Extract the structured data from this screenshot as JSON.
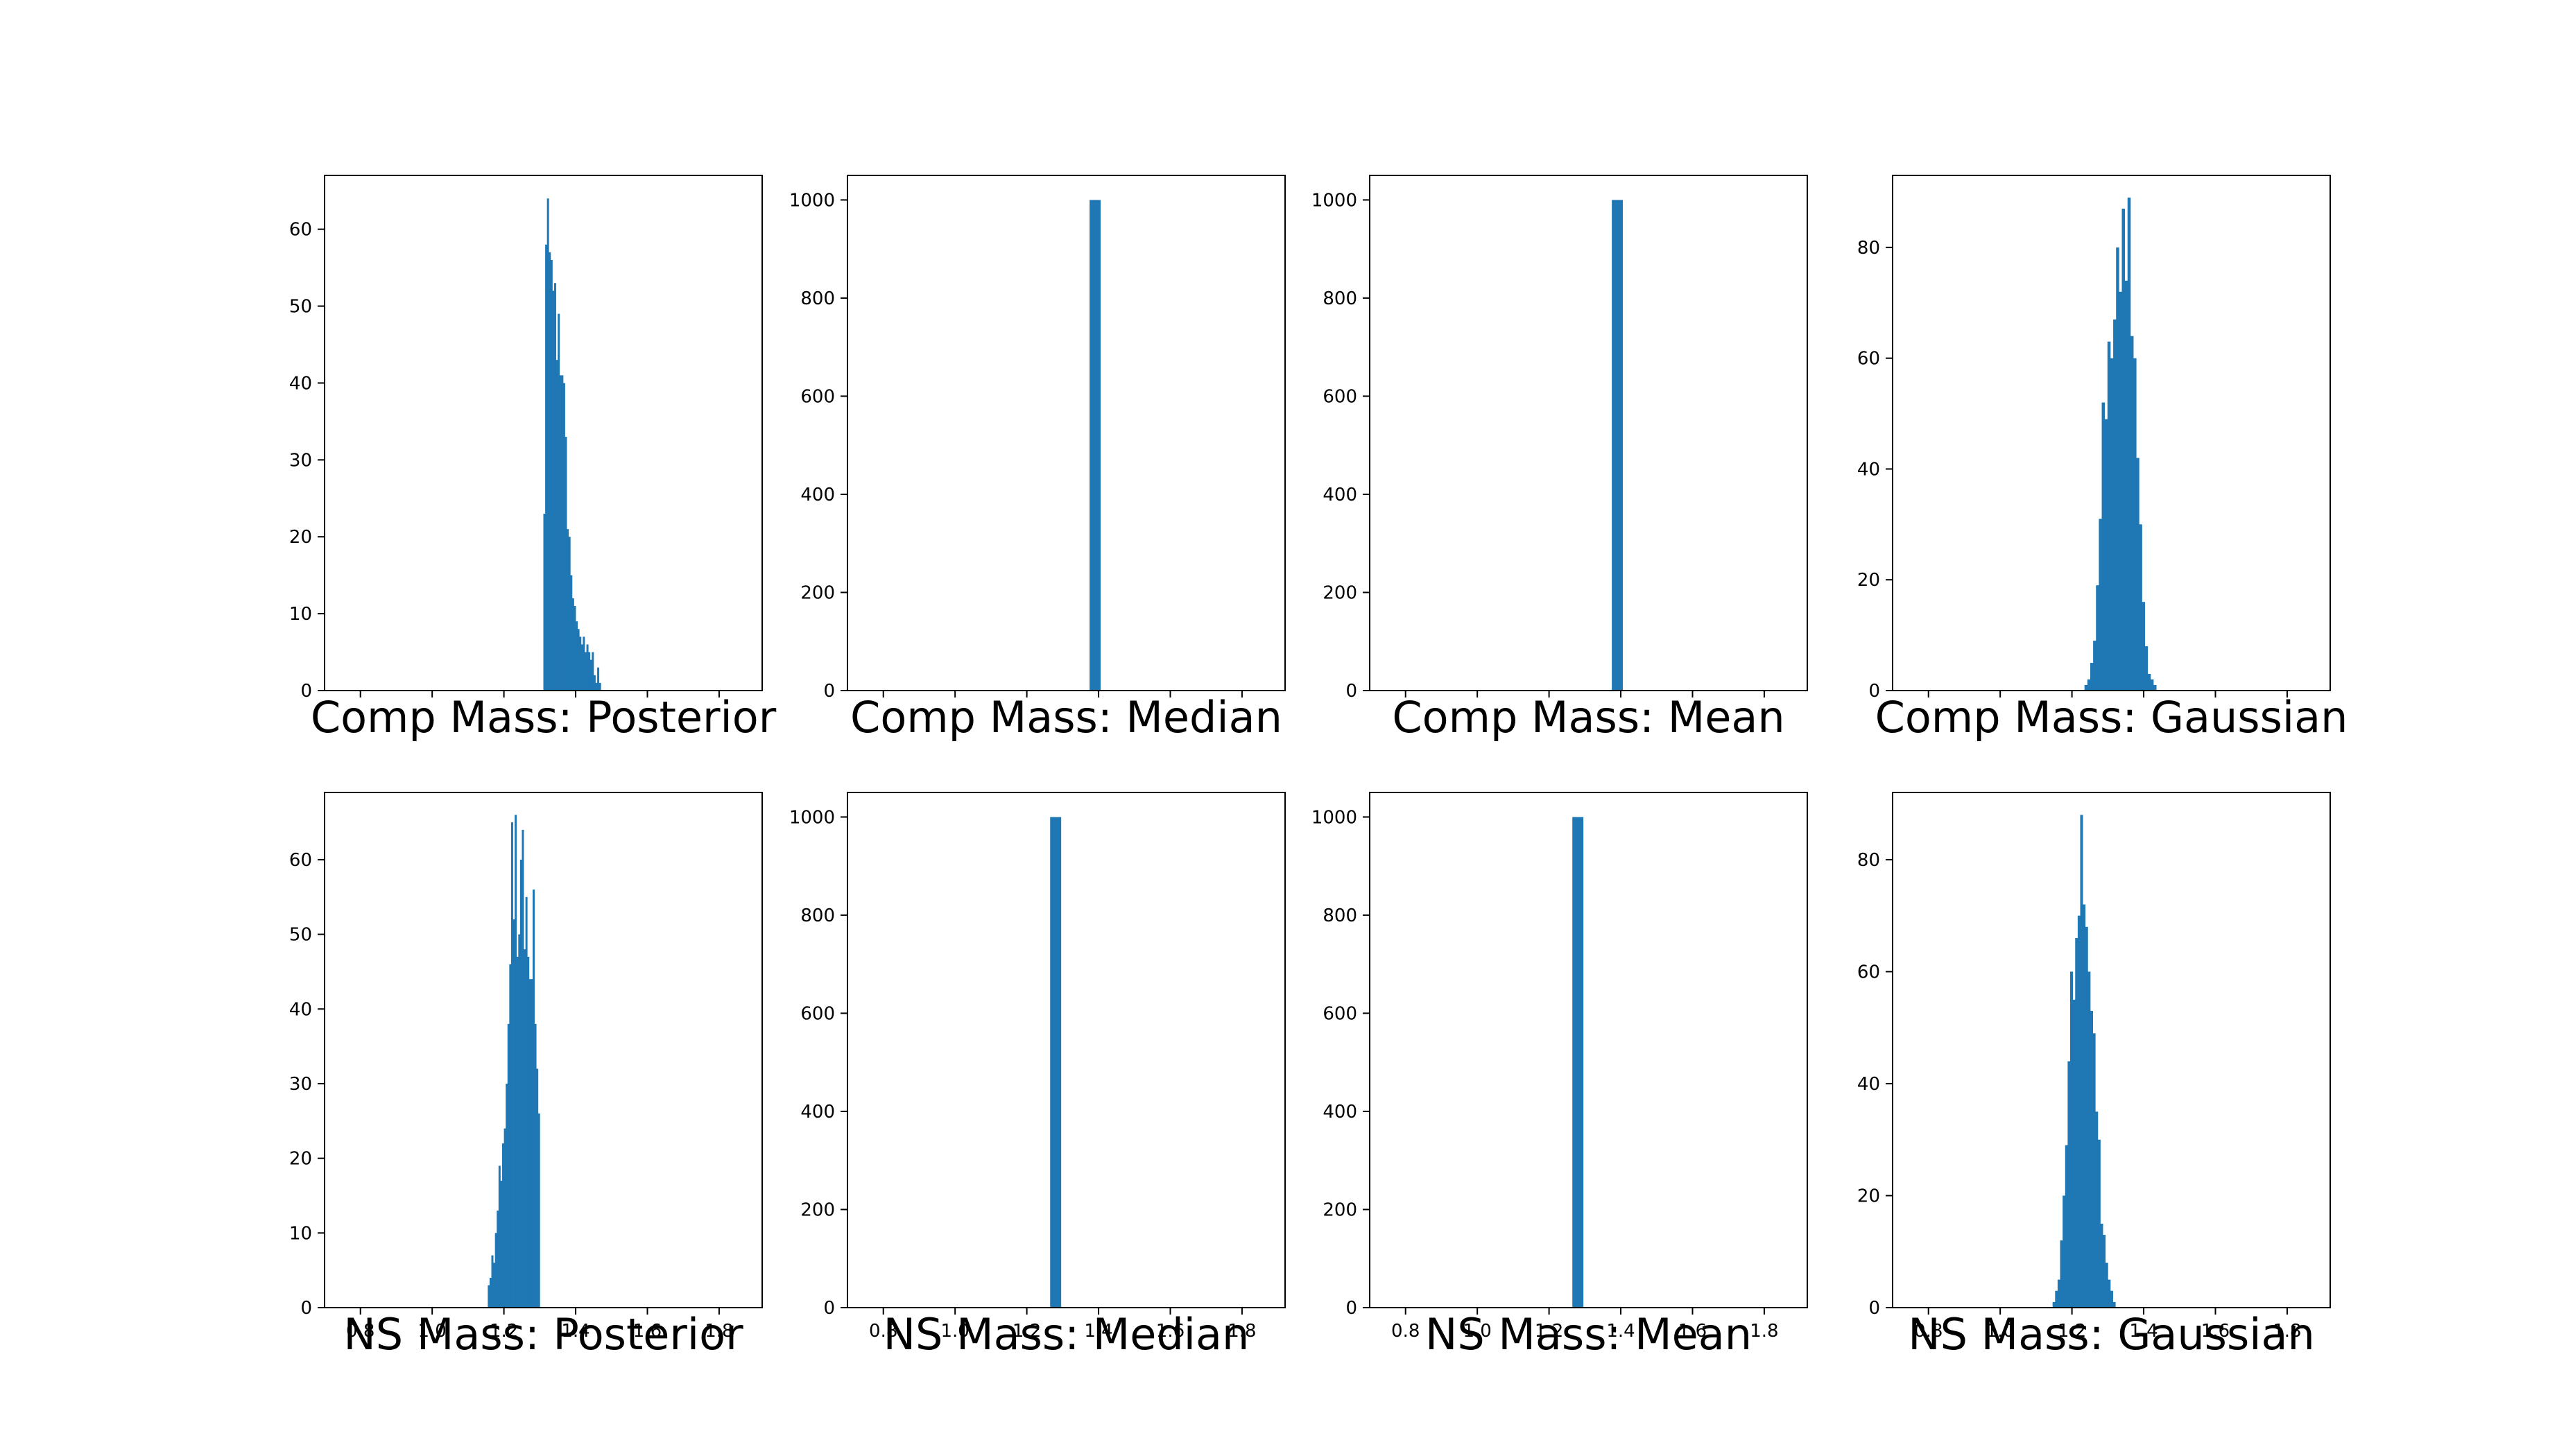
{
  "bar_color": "#1f77b4",
  "chart_data": [
    {
      "type": "bar",
      "title": "Comp Mass: Posterior",
      "xlim": [
        0.7,
        1.92
      ],
      "ylim": [
        0,
        67
      ],
      "yticks": [
        0,
        10,
        20,
        30,
        40,
        50,
        60
      ],
      "xticks": [],
      "bin_width": 0.005,
      "bins": [
        [
          1.31,
          23
        ],
        [
          1.315,
          58
        ],
        [
          1.32,
          64
        ],
        [
          1.325,
          57
        ],
        [
          1.33,
          56
        ],
        [
          1.335,
          52
        ],
        [
          1.34,
          53
        ],
        [
          1.345,
          43
        ],
        [
          1.35,
          49
        ],
        [
          1.355,
          41
        ],
        [
          1.36,
          41
        ],
        [
          1.365,
          40
        ],
        [
          1.37,
          33
        ],
        [
          1.375,
          21
        ],
        [
          1.38,
          20
        ],
        [
          1.385,
          15
        ],
        [
          1.39,
          12
        ],
        [
          1.395,
          11
        ],
        [
          1.4,
          9
        ],
        [
          1.405,
          8
        ],
        [
          1.41,
          7
        ],
        [
          1.415,
          6
        ],
        [
          1.42,
          7
        ],
        [
          1.425,
          5
        ],
        [
          1.43,
          6
        ],
        [
          1.435,
          5
        ],
        [
          1.44,
          4
        ],
        [
          1.445,
          5
        ],
        [
          1.45,
          2
        ],
        [
          1.455,
          1
        ],
        [
          1.46,
          3
        ],
        [
          1.465,
          1
        ]
      ]
    },
    {
      "type": "bar",
      "title": "Comp Mass: Median",
      "xlim": [
        0.7,
        1.92
      ],
      "ylim": [
        0,
        1050
      ],
      "yticks": [
        0,
        200,
        400,
        600,
        800,
        1000
      ],
      "xticks": [],
      "bin_width": 0.03,
      "bins": [
        [
          1.375,
          1000
        ]
      ]
    },
    {
      "type": "bar",
      "title": "Comp Mass: Mean",
      "xlim": [
        0.7,
        1.92
      ],
      "ylim": [
        0,
        1050
      ],
      "yticks": [
        0,
        200,
        400,
        600,
        800,
        1000
      ],
      "xticks": [],
      "bin_width": 0.03,
      "bins": [
        [
          1.375,
          1000
        ]
      ]
    },
    {
      "type": "bar",
      "title": "Comp Mass: Gaussian",
      "xlim": [
        0.7,
        1.92
      ],
      "ylim": [
        0,
        93
      ],
      "yticks": [
        0,
        20,
        40,
        60,
        80
      ],
      "xticks": [],
      "bin_width": 0.008,
      "bins": [
        [
          1.235,
          1
        ],
        [
          1.243,
          2
        ],
        [
          1.251,
          5
        ],
        [
          1.259,
          9
        ],
        [
          1.267,
          19
        ],
        [
          1.275,
          31
        ],
        [
          1.283,
          52
        ],
        [
          1.291,
          49
        ],
        [
          1.299,
          63
        ],
        [
          1.307,
          60
        ],
        [
          1.315,
          67
        ],
        [
          1.323,
          80
        ],
        [
          1.331,
          72
        ],
        [
          1.339,
          87
        ],
        [
          1.347,
          74
        ],
        [
          1.355,
          89
        ],
        [
          1.363,
          64
        ],
        [
          1.371,
          60
        ],
        [
          1.379,
          42
        ],
        [
          1.387,
          30
        ],
        [
          1.395,
          16
        ],
        [
          1.403,
          8
        ],
        [
          1.411,
          3
        ],
        [
          1.419,
          2
        ],
        [
          1.427,
          1
        ]
      ]
    },
    {
      "type": "bar",
      "title": "NS Mass: Posterior",
      "xlim": [
        0.7,
        1.92
      ],
      "ylim": [
        0,
        69
      ],
      "yticks": [
        0,
        10,
        20,
        30,
        40,
        50,
        60
      ],
      "xticks": [
        0.8,
        1.0,
        1.2,
        1.4,
        1.6,
        1.8
      ],
      "xtick_labels": [
        "0.8",
        "1.0",
        "1.2",
        "1.4",
        "1.6",
        "1.8"
      ],
      "bin_width": 0.005,
      "bins": [
        [
          1.155,
          3
        ],
        [
          1.16,
          4
        ],
        [
          1.165,
          7
        ],
        [
          1.17,
          6
        ],
        [
          1.175,
          10
        ],
        [
          1.18,
          13
        ],
        [
          1.185,
          19
        ],
        [
          1.19,
          17
        ],
        [
          1.195,
          22
        ],
        [
          1.2,
          24
        ],
        [
          1.205,
          30
        ],
        [
          1.21,
          38
        ],
        [
          1.215,
          46
        ],
        [
          1.22,
          65
        ],
        [
          1.225,
          52
        ],
        [
          1.23,
          66
        ],
        [
          1.235,
          47
        ],
        [
          1.24,
          50
        ],
        [
          1.245,
          60
        ],
        [
          1.25,
          64
        ],
        [
          1.255,
          48
        ],
        [
          1.26,
          55
        ],
        [
          1.265,
          47
        ],
        [
          1.27,
          44
        ],
        [
          1.275,
          44
        ],
        [
          1.28,
          56
        ],
        [
          1.285,
          38
        ],
        [
          1.29,
          32
        ],
        [
          1.295,
          26
        ]
      ]
    },
    {
      "type": "bar",
      "title": "NS Mass: Median",
      "xlim": [
        0.7,
        1.92
      ],
      "ylim": [
        0,
        1050
      ],
      "yticks": [
        0,
        200,
        400,
        600,
        800,
        1000
      ],
      "xticks": [
        0.8,
        1.0,
        1.2,
        1.4,
        1.6,
        1.8
      ],
      "xtick_labels": [
        "0.8",
        "1.0",
        "1.2",
        "1.4",
        "1.6",
        "1.8"
      ],
      "bin_width": 0.03,
      "bins": [
        [
          1.265,
          1000
        ]
      ]
    },
    {
      "type": "bar",
      "title": "NS Mass: Mean",
      "xlim": [
        0.7,
        1.92
      ],
      "ylim": [
        0,
        1050
      ],
      "yticks": [
        0,
        200,
        400,
        600,
        800,
        1000
      ],
      "xticks": [
        0.8,
        1.0,
        1.2,
        1.4,
        1.6,
        1.8
      ],
      "xtick_labels": [
        "0.8",
        "1.0",
        "1.2",
        "1.4",
        "1.6",
        "1.8"
      ],
      "bin_width": 0.03,
      "bins": [
        [
          1.265,
          1000
        ]
      ]
    },
    {
      "type": "bar",
      "title": "NS Mass: Gaussian",
      "xlim": [
        0.7,
        1.92
      ],
      "ylim": [
        0,
        92
      ],
      "yticks": [
        0,
        20,
        40,
        60,
        80
      ],
      "xticks": [
        0.8,
        1.0,
        1.2,
        1.4,
        1.6,
        1.8
      ],
      "xtick_labels": [
        "0.8",
        "1.0",
        "1.2",
        "1.4",
        "1.6",
        "1.8"
      ],
      "bin_width": 0.007,
      "bins": [
        [
          1.146,
          1
        ],
        [
          1.153,
          3
        ],
        [
          1.16,
          5
        ],
        [
          1.167,
          12
        ],
        [
          1.174,
          20
        ],
        [
          1.181,
          29
        ],
        [
          1.188,
          44
        ],
        [
          1.195,
          60
        ],
        [
          1.202,
          55
        ],
        [
          1.209,
          66
        ],
        [
          1.216,
          70
        ],
        [
          1.223,
          88
        ],
        [
          1.23,
          72
        ],
        [
          1.237,
          68
        ],
        [
          1.244,
          60
        ],
        [
          1.251,
          53
        ],
        [
          1.258,
          49
        ],
        [
          1.265,
          35
        ],
        [
          1.272,
          30
        ],
        [
          1.279,
          15
        ],
        [
          1.286,
          13
        ],
        [
          1.293,
          8
        ],
        [
          1.3,
          5
        ],
        [
          1.307,
          3
        ],
        [
          1.314,
          1
        ]
      ]
    }
  ]
}
